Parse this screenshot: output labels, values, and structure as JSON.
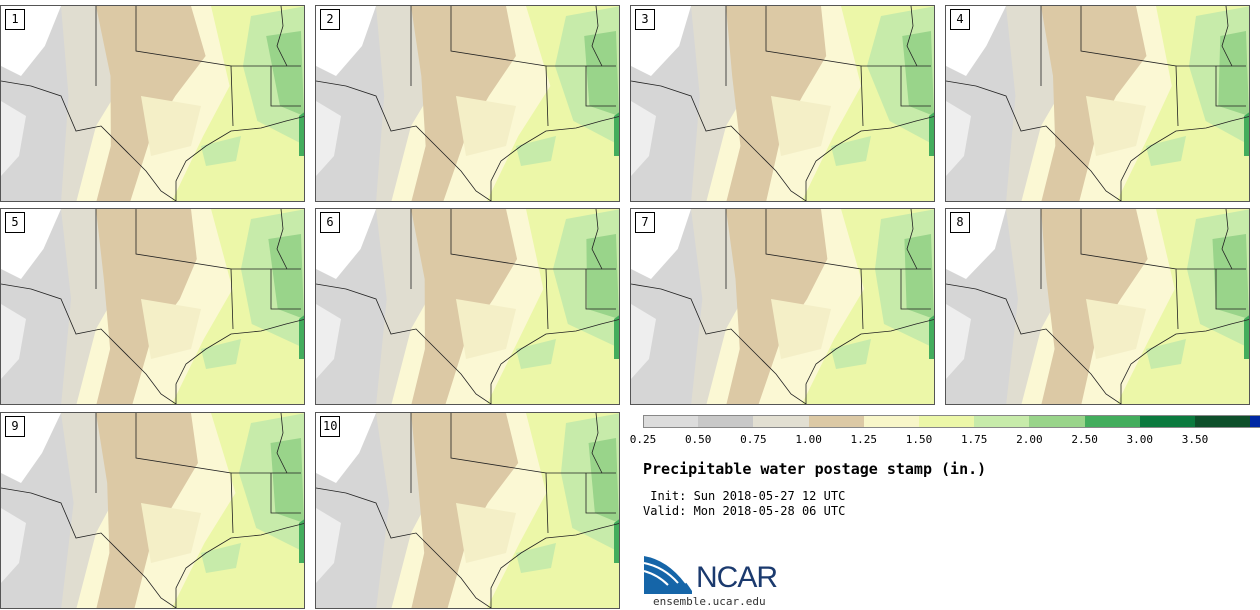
{
  "panels": [
    {
      "label": "1"
    },
    {
      "label": "2"
    },
    {
      "label": "3"
    },
    {
      "label": "4"
    },
    {
      "label": "5"
    },
    {
      "label": "6"
    },
    {
      "label": "7"
    },
    {
      "label": "8"
    },
    {
      "label": "9"
    },
    {
      "label": "10"
    }
  ],
  "legend": {
    "ticks": [
      "0.25",
      "0.50",
      "0.75",
      "1.00",
      "1.25",
      "1.50",
      "1.75",
      "2.00",
      "2.50",
      "3.00",
      "3.50"
    ],
    "colors": [
      "#dcdcdc",
      "#c8c8c8",
      "#e2dfd2",
      "#dcc9a5",
      "#f8f6c9",
      "#ecf7a8",
      "#c7ebaa",
      "#99d48a",
      "#43ad5d",
      "#0b7a3e",
      "#0e4f2a",
      "#0028a3"
    ]
  },
  "title": "Precipitable water postage stamp (in.)",
  "init_line": " Init: Sun 2018-05-27 12 UTC",
  "valid_line": "Valid: Mon 2018-05-28 06 UTC",
  "logo": {
    "name": "NCAR",
    "site": "ensemble.ucar.edu"
  }
}
